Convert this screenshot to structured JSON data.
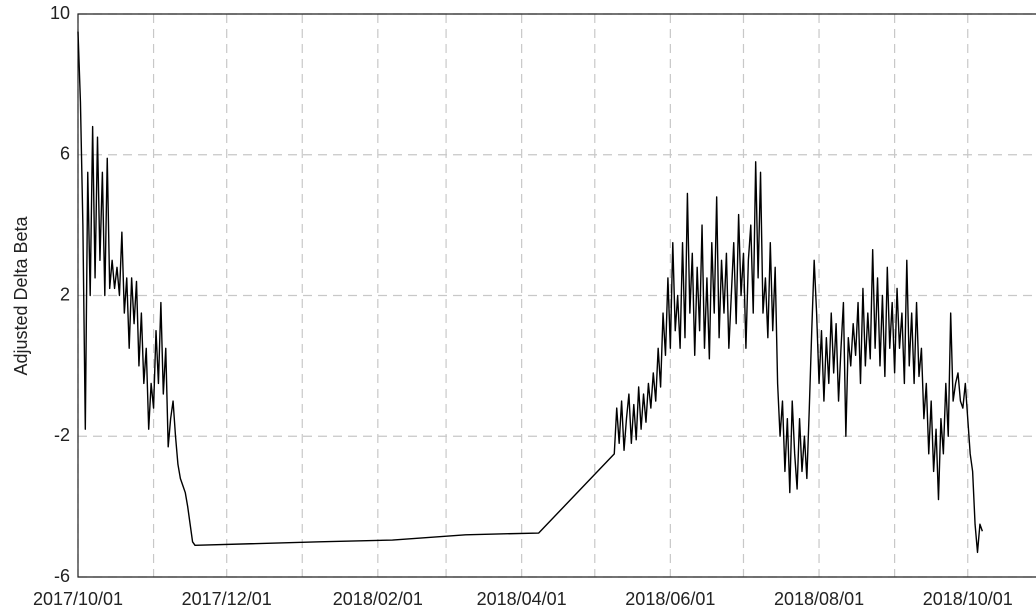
{
  "chart_data": {
    "type": "line",
    "ylabel": "Adjusted Delta Beta",
    "color": "#000000",
    "grid": true,
    "ylim": [
      -6,
      10
    ],
    "yticks": [
      -6,
      -2,
      2,
      6,
      10
    ],
    "xlim": [
      "2017/10/01",
      "2018/10/29"
    ],
    "xticks": [
      "2017/10/01",
      "2017/12/01",
      "2018/02/01",
      "2018/04/01",
      "2018/06/01",
      "2018/08/01",
      "2018/10/01"
    ],
    "xminorticks": [
      "2017/11/01",
      "2018/01/01",
      "2018/03/01",
      "2018/05/01",
      "2018/07/01",
      "2018/09/01"
    ],
    "x": [
      "2017/10/01",
      "2017/10/02",
      "2017/10/03",
      "2017/10/04",
      "2017/10/05",
      "2017/10/06",
      "2017/10/07",
      "2017/10/08",
      "2017/10/09",
      "2017/10/10",
      "2017/10/11",
      "2017/10/12",
      "2017/10/13",
      "2017/10/14",
      "2017/10/15",
      "2017/10/16",
      "2017/10/17",
      "2017/10/18",
      "2017/10/19",
      "2017/10/20",
      "2017/10/21",
      "2017/10/22",
      "2017/10/23",
      "2017/10/24",
      "2017/10/25",
      "2017/10/26",
      "2017/10/27",
      "2017/10/28",
      "2017/10/29",
      "2017/10/30",
      "2017/10/31",
      "2017/11/01",
      "2017/11/02",
      "2017/11/03",
      "2017/11/04",
      "2017/11/05",
      "2017/11/06",
      "2017/11/07",
      "2017/11/08",
      "2017/11/09",
      "2017/11/10",
      "2017/11/11",
      "2017/11/12",
      "2017/11/13",
      "2017/11/14",
      "2017/11/15",
      "2017/11/16",
      "2017/11/17",
      "2017/11/18",
      "2018/01/08",
      "2018/02/07",
      "2018/03/09",
      "2018/04/08",
      "2018/05/09",
      "2018/05/10",
      "2018/05/11",
      "2018/05/12",
      "2018/05/13",
      "2018/05/14",
      "2018/05/15",
      "2018/05/16",
      "2018/05/17",
      "2018/05/18",
      "2018/05/19",
      "2018/05/20",
      "2018/05/21",
      "2018/05/22",
      "2018/05/23",
      "2018/05/24",
      "2018/05/25",
      "2018/05/26",
      "2018/05/27",
      "2018/05/28",
      "2018/05/29",
      "2018/05/30",
      "2018/05/31",
      "2018/06/01",
      "2018/06/02",
      "2018/06/03",
      "2018/06/04",
      "2018/06/05",
      "2018/06/06",
      "2018/06/07",
      "2018/06/08",
      "2018/06/09",
      "2018/06/10",
      "2018/06/11",
      "2018/06/12",
      "2018/06/13",
      "2018/06/14",
      "2018/06/15",
      "2018/06/16",
      "2018/06/17",
      "2018/06/18",
      "2018/06/19",
      "2018/06/20",
      "2018/06/21",
      "2018/06/22",
      "2018/06/23",
      "2018/06/24",
      "2018/06/25",
      "2018/06/26",
      "2018/06/27",
      "2018/06/28",
      "2018/06/29",
      "2018/06/30",
      "2018/07/01",
      "2018/07/02",
      "2018/07/03",
      "2018/07/04",
      "2018/07/05",
      "2018/07/06",
      "2018/07/07",
      "2018/07/08",
      "2018/07/09",
      "2018/07/10",
      "2018/07/11",
      "2018/07/12",
      "2018/07/13",
      "2018/07/14",
      "2018/07/15",
      "2018/07/16",
      "2018/07/17",
      "2018/07/18",
      "2018/07/19",
      "2018/07/20",
      "2018/07/21",
      "2018/07/22",
      "2018/07/23",
      "2018/07/24",
      "2018/07/25",
      "2018/07/26",
      "2018/07/27",
      "2018/07/28",
      "2018/07/29",
      "2018/07/30",
      "2018/07/31",
      "2018/08/01",
      "2018/08/02",
      "2018/08/03",
      "2018/08/04",
      "2018/08/05",
      "2018/08/06",
      "2018/08/07",
      "2018/08/08",
      "2018/08/09",
      "2018/08/10",
      "2018/08/11",
      "2018/08/12",
      "2018/08/13",
      "2018/08/14",
      "2018/08/15",
      "2018/08/16",
      "2018/08/17",
      "2018/08/18",
      "2018/08/19",
      "2018/08/20",
      "2018/08/21",
      "2018/08/22",
      "2018/08/23",
      "2018/08/24",
      "2018/08/25",
      "2018/08/26",
      "2018/08/27",
      "2018/08/28",
      "2018/08/29",
      "2018/08/30",
      "2018/08/31",
      "2018/09/01",
      "2018/09/02",
      "2018/09/03",
      "2018/09/04",
      "2018/09/05",
      "2018/09/06",
      "2018/09/07",
      "2018/09/08",
      "2018/09/09",
      "2018/09/10",
      "2018/09/11",
      "2018/09/12",
      "2018/09/13",
      "2018/09/14",
      "2018/09/15",
      "2018/09/16",
      "2018/09/17",
      "2018/09/18",
      "2018/09/19",
      "2018/09/20",
      "2018/09/21",
      "2018/09/22",
      "2018/09/23",
      "2018/09/24",
      "2018/09/25",
      "2018/09/26",
      "2018/09/27",
      "2018/09/28",
      "2018/09/29",
      "2018/09/30",
      "2018/10/01",
      "2018/10/02",
      "2018/10/03",
      "2018/10/04",
      "2018/10/05",
      "2018/10/06",
      "2018/10/07"
    ],
    "values": [
      9.5,
      7.5,
      4,
      -1.8,
      5.5,
      2,
      6.8,
      2.5,
      6.5,
      3,
      5.5,
      2,
      5.9,
      2.2,
      3,
      2.2,
      2.8,
      2,
      3.8,
      1.5,
      2.5,
      0.5,
      2.5,
      1.2,
      2.4,
      0,
      1.5,
      -0.5,
      0.5,
      -1.8,
      -0.5,
      -1.2,
      1,
      -0.5,
      1.8,
      -0.8,
      0.5,
      -2.3,
      -1.5,
      -1,
      -2,
      -2.8,
      -3.2,
      -3.4,
      -3.6,
      -4,
      -4.5,
      -5,
      -5.1,
      -5.0,
      -4.95,
      -4.8,
      -4.75,
      -2.5,
      -1.2,
      -2.2,
      -1,
      -2.4,
      -1.5,
      -0.8,
      -2.2,
      -1.1,
      -2.1,
      -0.6,
      -1.8,
      -0.8,
      -1.6,
      -0.5,
      -1.2,
      -0.2,
      -1,
      0.5,
      -0.6,
      1.5,
      0.3,
      2.5,
      0.5,
      3.5,
      1,
      2,
      0.5,
      3.5,
      0.8,
      4.9,
      1.5,
      3.2,
      0.3,
      2.8,
      1,
      4,
      0.5,
      2.5,
      0.2,
      3.5,
      1.5,
      4.8,
      0.8,
      3,
      1.5,
      3.2,
      0.5,
      2,
      3.5,
      1.2,
      4.3,
      2,
      3.2,
      0.5,
      3,
      4,
      1.5,
      5.8,
      2.5,
      5.5,
      1.5,
      2.5,
      0.8,
      3.5,
      1,
      2.8,
      -0.5,
      -2,
      -1,
      -3,
      -1.5,
      -3.6,
      -1,
      -2.5,
      -3.5,
      -1.5,
      -3,
      -2,
      -3.2,
      -1.2,
      1,
      3,
      1.5,
      -0.5,
      1,
      -1,
      0.8,
      -0.5,
      1.5,
      -0.2,
      1.2,
      -1,
      0.5,
      1.8,
      -2,
      0.8,
      0,
      1.2,
      0.3,
      1.8,
      -0.5,
      2.2,
      0,
      1.5,
      0.2,
      3.3,
      0.5,
      2.5,
      0,
      2,
      -0.3,
      2.8,
      0.5,
      1.8,
      -0.2,
      2.2,
      0.5,
      1.5,
      -0.5,
      3,
      0,
      1.5,
      -0.5,
      1.8,
      -0.3,
      0.5,
      -1.5,
      -0.5,
      -2.5,
      -1,
      -3,
      -1.8,
      -3.8,
      -1.5,
      -2.5,
      -0.5,
      -2,
      1.5,
      -1,
      -0.5,
      -0.2,
      -1,
      -1.2,
      -0.5,
      -1.5,
      -2.5,
      -3,
      -4.5,
      -5.3,
      -4.5,
      -4.7
    ]
  }
}
